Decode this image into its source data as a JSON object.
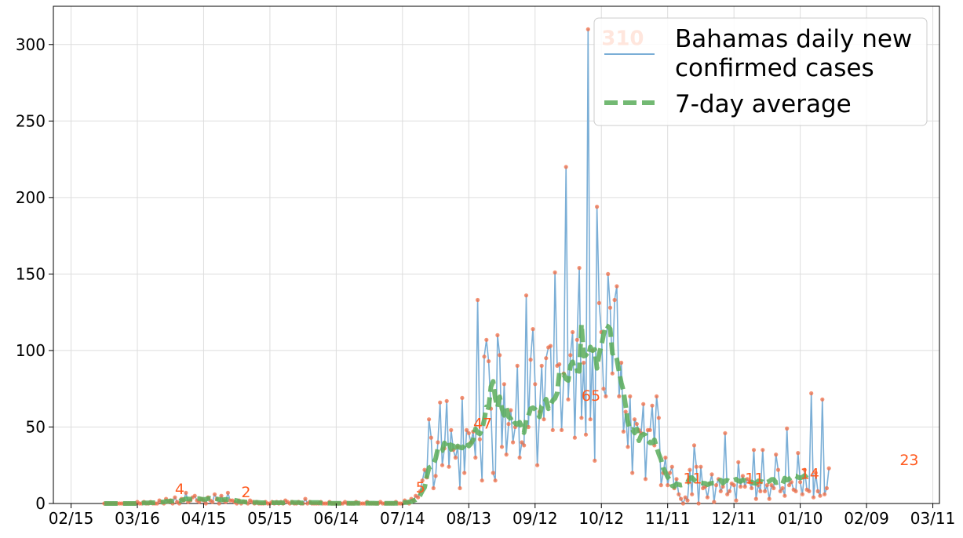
{
  "chart_data": {
    "type": "line",
    "title": "",
    "xlabel": "",
    "ylabel": "",
    "ylim": [
      0,
      325
    ],
    "yticks": [
      0,
      50,
      100,
      150,
      200,
      250,
      300
    ],
    "xlim": [
      "2020-02-07",
      "2021-03-14"
    ],
    "xticks": [
      {
        "date": "2020-02-15",
        "label": "02/15"
      },
      {
        "date": "2020-03-16",
        "label": "03/16"
      },
      {
        "date": "2020-04-15",
        "label": "04/15"
      },
      {
        "date": "2020-05-15",
        "label": "05/15"
      },
      {
        "date": "2020-06-14",
        "label": "06/14"
      },
      {
        "date": "2020-07-14",
        "label": "07/14"
      },
      {
        "date": "2020-08-13",
        "label": "08/13"
      },
      {
        "date": "2020-09-12",
        "label": "09/12"
      },
      {
        "date": "2020-10-12",
        "label": "10/12"
      },
      {
        "date": "2020-11-11",
        "label": "11/11"
      },
      {
        "date": "2020-12-11",
        "label": "12/11"
      },
      {
        "date": "2021-01-10",
        "label": "01/10"
      },
      {
        "date": "2021-02-09",
        "label": "02/09"
      },
      {
        "date": "2021-03-11",
        "label": "03/11"
      }
    ],
    "grid": true,
    "legend_position": "top-right",
    "start_date": "2020-03-01",
    "series": [
      {
        "name": "Bahamas daily new confirmed cases",
        "color": "#7aaed6",
        "marker_color": "#f26d45",
        "style": "solid",
        "values": [
          0,
          0,
          0,
          0,
          0,
          0,
          0,
          0,
          0,
          0,
          0,
          0,
          0,
          0,
          0,
          1,
          0,
          0,
          1,
          0,
          0,
          1,
          0,
          0,
          0,
          2,
          1,
          0,
          3,
          1,
          2,
          0,
          4,
          1,
          0,
          3,
          2,
          7,
          1,
          2,
          4,
          5,
          2,
          1,
          3,
          2,
          0,
          4,
          2,
          1,
          6,
          3,
          0,
          5,
          2,
          1,
          7,
          2,
          2,
          1,
          0,
          2,
          0,
          1,
          1,
          0,
          2,
          1,
          0,
          1,
          0,
          0,
          0,
          1,
          0,
          0,
          1,
          0,
          1,
          0,
          1,
          0,
          2,
          1,
          0,
          1,
          0,
          0,
          1,
          0,
          0,
          3,
          0,
          1,
          0,
          0,
          0,
          0,
          1,
          0,
          0,
          0,
          1,
          0,
          0,
          0,
          0,
          0,
          0,
          1,
          0,
          0,
          0,
          0,
          1,
          0,
          0,
          0,
          0,
          1,
          0,
          0,
          0,
          0,
          0,
          1,
          0,
          0,
          0,
          0,
          0,
          0,
          1,
          0,
          0,
          0,
          2,
          1,
          0,
          3,
          2,
          5,
          4,
          8,
          15,
          22,
          17,
          55,
          43,
          10,
          18,
          40,
          66,
          25,
          36,
          67,
          24,
          48,
          35,
          30,
          37,
          10,
          69,
          20,
          48,
          46,
          40,
          47,
          30,
          133,
          42,
          15,
          96,
          107,
          93,
          62,
          20,
          15,
          110,
          97,
          37,
          78,
          32,
          52,
          61,
          40,
          50,
          90,
          30,
          40,
          38,
          136,
          50,
          94,
          114,
          78,
          25,
          60,
          90,
          55,
          95,
          102,
          103,
          48,
          151,
          90,
          91,
          48,
          85,
          220,
          68,
          97,
          112,
          43,
          107,
          154,
          56,
          92,
          45,
          310,
          55,
          100,
          28,
          194,
          131,
          112,
          75,
          70,
          150,
          128,
          85,
          133,
          142,
          70,
          92,
          47,
          60,
          37,
          70,
          20,
          55,
          52,
          48,
          46,
          65,
          16,
          48,
          48,
          64,
          38,
          70,
          56,
          12,
          20,
          30,
          12,
          20,
          24,
          10,
          16,
          6,
          3,
          0,
          4,
          2,
          22,
          6,
          38,
          24,
          0,
          24,
          10,
          11,
          4,
          13,
          19,
          1,
          12,
          16,
          8,
          11,
          46,
          6,
          8,
          13,
          12,
          2,
          27,
          11,
          18,
          11,
          16,
          14,
          10,
          35,
          3,
          12,
          8,
          35,
          8,
          12,
          3,
          12,
          10,
          32,
          22,
          8,
          10,
          5,
          49,
          12,
          14,
          9,
          8,
          33,
          14,
          6,
          22,
          9,
          8,
          72,
          4,
          20,
          8,
          5,
          68,
          6,
          10,
          23
        ]
      },
      {
        "name": "7-day average",
        "color": "#5aad5a",
        "style": "dashed",
        "values": [
          0,
          0,
          0,
          0,
          0,
          0,
          0,
          0,
          0,
          0,
          0,
          0,
          0,
          0,
          0,
          0.2,
          0.2,
          0.2,
          0.4,
          0.4,
          0.4,
          0.5,
          0.5,
          0.5,
          0.6,
          0.9,
          0.9,
          1,
          1.4,
          1.4,
          1.7,
          1.6,
          2,
          2,
          1.6,
          2.1,
          2.5,
          3.1,
          2.9,
          2.8,
          2.9,
          3.5,
          3.2,
          3.2,
          2.8,
          2.7,
          2.7,
          3.3,
          3.4,
          3.1,
          3.5,
          2.9,
          2.7,
          2.2,
          2.5,
          2.7,
          2.5,
          2.3,
          2.4,
          2.1,
          1.9,
          1.3,
          1.2,
          1.2,
          0.9,
          0.9,
          1,
          0.8,
          0.7,
          0.7,
          0.6,
          0.5,
          0.5,
          0.4,
          0.5,
          0.5,
          0.5,
          0.5,
          0.5,
          0.5,
          0.5,
          0.4,
          0.7,
          0.7,
          0.7,
          0.7,
          0.6,
          0.6,
          0.6,
          0.4,
          0.4,
          0.7,
          0.7,
          0.7,
          0.6,
          0.6,
          0.6,
          0.6,
          0.3,
          0.2,
          0.2,
          0.2,
          0.2,
          0.1,
          0.1,
          0.1,
          0.1,
          0.1,
          0.1,
          0.2,
          0.2,
          0.1,
          0.1,
          0.1,
          0.2,
          0.2,
          0.2,
          0.2,
          0.1,
          0.2,
          0.2,
          0.2,
          0.2,
          0.1,
          0.1,
          0.1,
          0.2,
          0.1,
          0.1,
          0.1,
          0.1,
          0.1,
          0.1,
          0.1,
          0.1,
          0.4,
          0.6,
          0.6,
          1,
          1.2,
          1.9,
          2.4,
          3.4,
          5.5,
          8.3,
          10.5,
          17.7,
          23.4,
          24.1,
          26.4,
          29.3,
          35.9,
          34,
          34.6,
          39.6,
          37.3,
          40,
          35.3,
          40.3,
          36.6,
          37.6,
          36.6,
          36.3,
          37.7,
          40.4,
          37.6,
          39.1,
          41.7,
          48.7,
          46.3,
          45.5,
          48.5,
          54.7,
          63.2,
          62.6,
          76.3,
          79.8,
          68.8,
          62.9,
          69.7,
          62.1,
          57.6,
          62.6,
          56.7,
          55.4,
          51.4,
          52.6,
          51.6,
          53.1,
          49.9,
          46.3,
          55.1,
          57.4,
          62,
          62.6,
          61.6,
          59.3,
          56.6,
          63.6,
          64.7,
          68.2,
          61.9,
          64.4,
          67.4,
          68.7,
          72.2,
          85.4,
          83.4,
          84.3,
          81.4,
          80.4,
          90,
          92.6,
          86.6,
          86.9,
          86.4,
          117.2,
          96.3,
          97.1,
          95.9,
          102.3,
          99.9,
          100.7,
          88.4,
          97.7,
          103.2,
          110.2,
          116.5,
          115.7,
          114.1,
          98.1,
          98.6,
          94.4,
          86.1,
          78.9,
          73.6,
          63.6,
          53.3,
          48.1,
          48.4,
          46.1,
          48.6,
          41,
          44.4,
          45.2,
          44.6,
          41.3,
          39.6,
          39.6,
          41.7,
          36.6,
          32.4,
          28.6,
          23,
          20.4,
          17.3,
          15.4,
          11.7,
          11,
          12.8,
          12.4,
          12,
          12.3,
          13.2,
          13.8,
          16.7,
          16.9,
          15.4,
          14.2,
          13.8,
          13.5,
          13.3,
          13.1,
          12.3,
          12.9,
          13.3,
          13.4,
          13.3,
          14.1,
          15.3,
          13.2,
          14.8,
          15.1,
          14.4,
          14.7,
          15.3,
          15.9,
          14.7,
          14.4,
          15.4,
          15,
          14.6,
          13.8,
          14.1,
          13.3,
          13.2,
          14.8,
          14.4,
          14.2,
          13,
          14,
          14.5,
          15.7,
          15.8,
          13.6,
          13.9,
          13.4,
          12.8,
          16.6,
          15.3,
          16.1,
          17.3,
          18.1,
          18,
          17.1,
          16.7,
          17.2,
          18.3,
          16.6
        ]
      }
    ],
    "annotations": [
      {
        "date": "2020-04-02",
        "value": 4,
        "label": "4"
      },
      {
        "date": "2020-05-02",
        "value": 2,
        "label": "2"
      },
      {
        "date": "2020-07-20",
        "value": 5,
        "label": "5"
      },
      {
        "date": "2020-08-15",
        "value": 47,
        "label": "47"
      },
      {
        "date": "2020-10-03",
        "value": 65,
        "label": "65"
      },
      {
        "date": "2020-10-12",
        "value": 310,
        "label": "310",
        "peak": true
      },
      {
        "date": "2020-11-18",
        "value": 11,
        "label": "11"
      },
      {
        "date": "2020-12-16",
        "value": 11,
        "label": "11"
      },
      {
        "date": "2021-01-10",
        "value": 14,
        "label": "14"
      },
      {
        "date": "2021-02-24",
        "value": 23,
        "label": "23"
      }
    ]
  }
}
